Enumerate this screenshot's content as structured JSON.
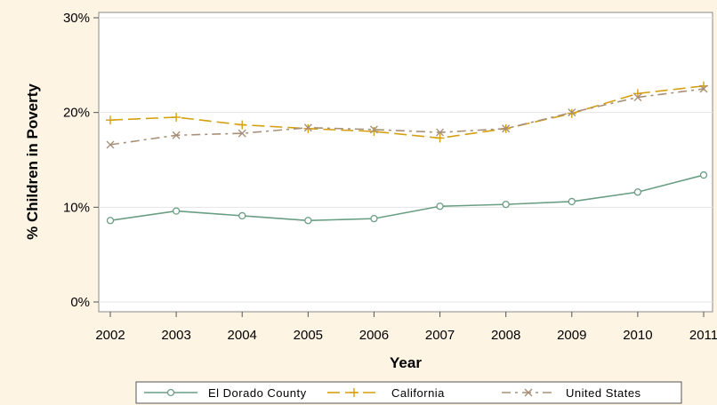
{
  "chart_data": {
    "type": "line",
    "title": "",
    "xlabel": "Year",
    "ylabel": "% Children in Poverty",
    "x": [
      2002,
      2003,
      2004,
      2005,
      2006,
      2007,
      2008,
      2009,
      2010,
      2011
    ],
    "x_tick_labels": [
      "2002",
      "2003",
      "2004",
      "2005",
      "2006",
      "2007",
      "2008",
      "2009",
      "2010",
      "2011"
    ],
    "ylim": [
      0,
      30
    ],
    "y_ticks": [
      0,
      10,
      20,
      30
    ],
    "y_tick_labels": [
      "0%",
      "10%",
      "20%",
      "30%"
    ],
    "grid": true,
    "legend_position": "bottom",
    "series": [
      {
        "name": "El Dorado County",
        "values": [
          8.6,
          9.6,
          9.1,
          8.6,
          8.8,
          10.1,
          10.3,
          10.6,
          11.6,
          13.4
        ],
        "color": "#6a9e82",
        "dash": "solid",
        "marker": "circle"
      },
      {
        "name": "California",
        "values": [
          19.2,
          19.5,
          18.7,
          18.3,
          18.0,
          17.3,
          18.3,
          19.9,
          22.0,
          22.8
        ],
        "color": "#d4a012",
        "dash": "long-dash",
        "marker": "plus"
      },
      {
        "name": "United States",
        "values": [
          16.6,
          17.6,
          17.8,
          18.4,
          18.2,
          17.9,
          18.3,
          20.0,
          21.6,
          22.5
        ],
        "color": "#a89078",
        "dash": "dash-dot",
        "marker": "x"
      }
    ]
  }
}
